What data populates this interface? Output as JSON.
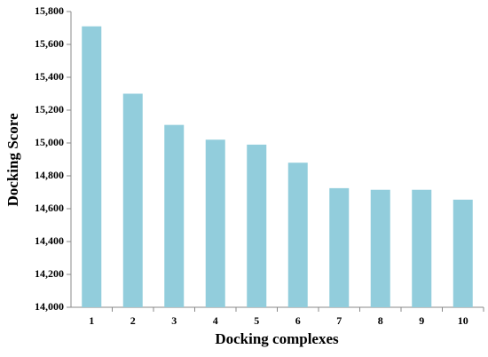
{
  "chart_data": {
    "type": "bar",
    "xlabel": "Docking complexes",
    "ylabel": "Docking Score",
    "categories": [
      "1",
      "2",
      "3",
      "4",
      "5",
      "6",
      "7",
      "8",
      "9",
      "10"
    ],
    "values": [
      15710,
      15300,
      15110,
      15020,
      14990,
      14880,
      14725,
      14715,
      14715,
      14655
    ],
    "color": "#92cddc",
    "ylim": [
      14000,
      15800
    ],
    "yticks": [
      {
        "value": 14000,
        "label": "14,000"
      },
      {
        "value": 14200,
        "label": "14,200"
      },
      {
        "value": 14400,
        "label": "14,400"
      },
      {
        "value": 14600,
        "label": "14,600"
      },
      {
        "value": 14800,
        "label": "14,800"
      },
      {
        "value": 15000,
        "label": "15,000"
      },
      {
        "value": 15200,
        "label": "15,200"
      },
      {
        "value": 15400,
        "label": "15,400"
      },
      {
        "value": 15600,
        "label": "15,600"
      },
      {
        "value": 15800,
        "label": "15,800"
      }
    ],
    "grid": false
  }
}
